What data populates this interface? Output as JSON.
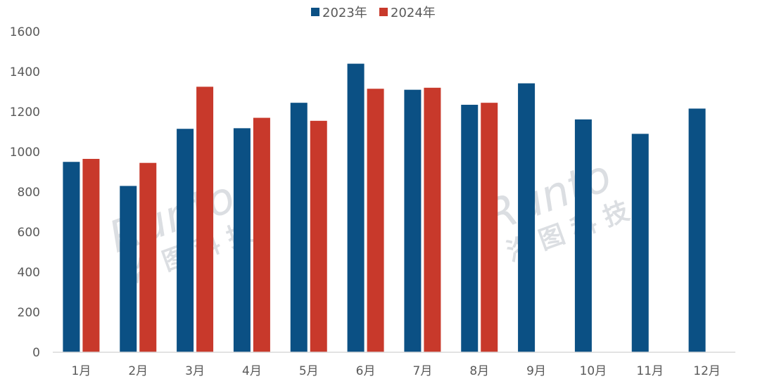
{
  "chart_data": {
    "type": "bar",
    "categories": [
      "1月",
      "2月",
      "3月",
      "4月",
      "5月",
      "6月",
      "7月",
      "8月",
      "9月",
      "10月",
      "11月",
      "12月"
    ],
    "series": [
      {
        "name": "2023年",
        "color": "#0b5084",
        "values": [
          950,
          830,
          1115,
          1118,
          1245,
          1440,
          1310,
          1235,
          1342,
          1162,
          1090,
          1216
        ]
      },
      {
        "name": "2024年",
        "color": "#c8392b",
        "values": [
          965,
          945,
          1325,
          1170,
          1155,
          1315,
          1320,
          1245,
          null,
          null,
          null,
          null
        ]
      }
    ],
    "ylim": [
      0,
      1600
    ],
    "yticks": [
      0,
      200,
      400,
      600,
      800,
      1000,
      1200,
      1400,
      1600
    ],
    "legend_position": "top-center",
    "grid": false
  },
  "watermark": {
    "latin": "Runto",
    "cjk": "洛 图 科 技"
  }
}
